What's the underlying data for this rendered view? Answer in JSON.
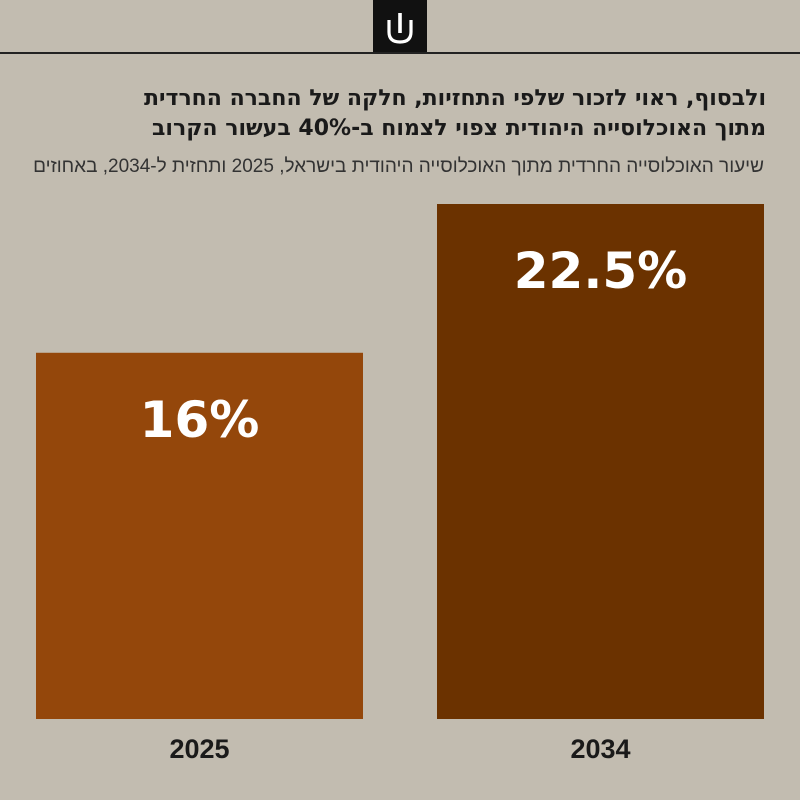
{
  "headline": {
    "line1": "ולבסוף, ראוי לזכור שלפי התחזיות, חלקה של החברה החרדית",
    "line2": "מתוך האוכלוסייה היהודית צפוי לצמוח ב-40% בעשור הקרוב"
  },
  "subtitle": "שיעור האוכלוסייה החרדית מתוך האוכלוסייה היהודית בישראל, 2025 ותחזית ל-2034, באחוזים",
  "chart_data": {
    "type": "bar",
    "title": "ולבסוף, ראוי לזכור שלפי התחזיות, חלקה של החברה החרדית מתוך האוכלוסייה היהודית צפוי לצמוח ב-40% בעשור הקרוב",
    "subtitle": "שיעור האוכלוסייה החרדית מתוך האוכלוסייה היהודית בישראל, 2025 ותחזית ל-2034, באחוזים",
    "categories": [
      "2025",
      "2034"
    ],
    "values": [
      16,
      22.5
    ],
    "value_labels": [
      "16%",
      "22.5%"
    ],
    "colors": [
      "#94470b",
      "#6b3200"
    ],
    "xlabel": "",
    "ylabel": "",
    "ylim": [
      0,
      22.5
    ],
    "grid": false
  }
}
